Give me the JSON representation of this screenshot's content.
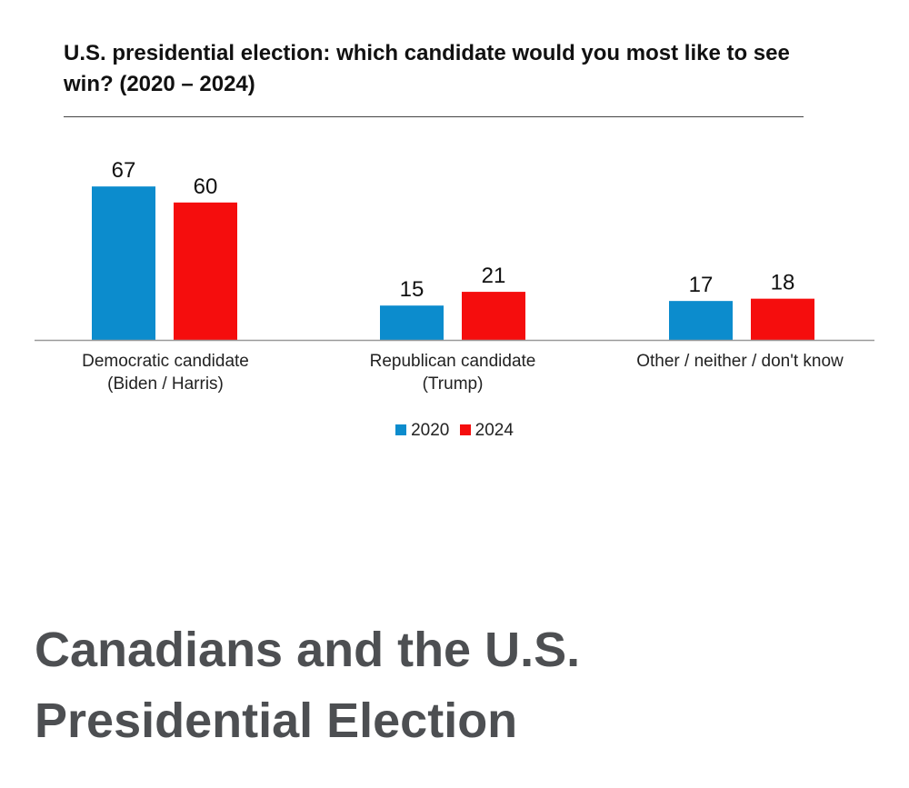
{
  "chart_data": {
    "type": "bar",
    "title": "U.S. presidential election: which candidate would you most like to see win? (2020 – 2024)",
    "categories": [
      "Democratic candidate\n(Biden / Harris)",
      "Republican candidate\n(Trump)",
      "Other / neither / don't know"
    ],
    "series": [
      {
        "name": "2020",
        "values": [
          67,
          15,
          17
        ],
        "color": "#0c8ccd"
      },
      {
        "name": "2024",
        "values": [
          60,
          21,
          18
        ],
        "color": "#f50d0d"
      }
    ],
    "xlabel": "",
    "ylabel": "",
    "ylim": [
      0,
      70
    ],
    "grid": false,
    "legend": "bottom-center"
  },
  "page": {
    "heading": "Canadians and the U.S. Presidential Election"
  }
}
